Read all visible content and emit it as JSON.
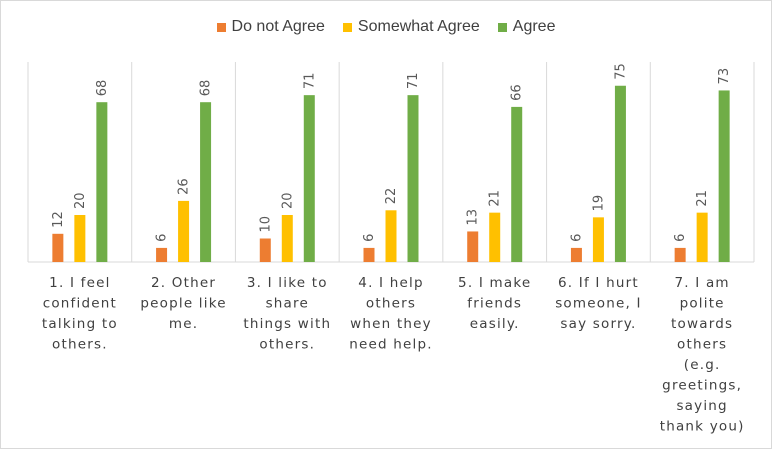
{
  "chart_data": {
    "type": "bar",
    "title": "",
    "xlabel": "",
    "ylabel": "",
    "ylim": [
      0,
      80
    ],
    "grid": "vertical-separators",
    "legend_position": "top",
    "categories": [
      [
        "1. I feel",
        "confident",
        "talking to",
        "others."
      ],
      [
        "2. Other",
        "people like",
        "me."
      ],
      [
        "3. I like to",
        "share",
        "things with",
        "others."
      ],
      [
        "4. I help",
        "others",
        "when they",
        "need help."
      ],
      [
        "5. I make",
        "friends",
        "easily."
      ],
      [
        "6. If I hurt",
        "someone, I",
        "say sorry."
      ],
      [
        "7. I am",
        "polite",
        "towards",
        "others",
        "(e.g.",
        "greetings,",
        "saying",
        "thank you)"
      ]
    ],
    "series": [
      {
        "name": "Do not Agree",
        "color": "#ed7d31",
        "values": [
          12,
          6,
          10,
          6,
          13,
          6,
          6
        ]
      },
      {
        "name": "Somewhat Agree",
        "color": "#ffc000",
        "values": [
          20,
          26,
          20,
          22,
          21,
          19,
          21
        ]
      },
      {
        "name": "Agree",
        "color": "#70ad47",
        "values": [
          68,
          68,
          71,
          71,
          66,
          75,
          73
        ]
      }
    ]
  }
}
